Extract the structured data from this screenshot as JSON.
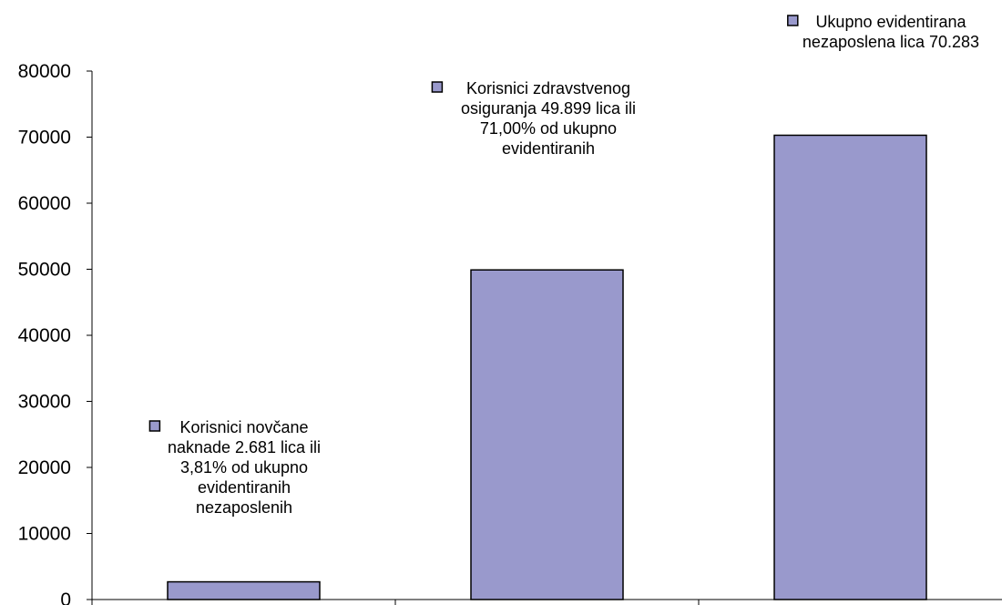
{
  "chart_data": {
    "type": "bar",
    "categories": [
      "",
      "",
      ""
    ],
    "values": [
      2681,
      49899,
      70283
    ],
    "ylim": [
      0,
      80000
    ],
    "yticks": [
      0,
      10000,
      20000,
      30000,
      40000,
      50000,
      60000,
      70000,
      80000
    ],
    "grid": false,
    "bar_color": "#9999cc",
    "bar_edge_color": "#000000",
    "annotations": [
      {
        "lines": [
          "Korisnici novčane",
          "naknade 2.681 lica ili",
          "3,81% od ukupno",
          "evidentiranih",
          "nezaposlenih"
        ]
      },
      {
        "lines": [
          "Korisnici zdravstvenog",
          "osiguranja 49.899  lica ili",
          "71,00% od ukupno",
          "evidentiranih"
        ]
      },
      {
        "lines": [
          "Ukupno evidentirana",
          "nezaposlena lica 70.283"
        ]
      }
    ]
  }
}
